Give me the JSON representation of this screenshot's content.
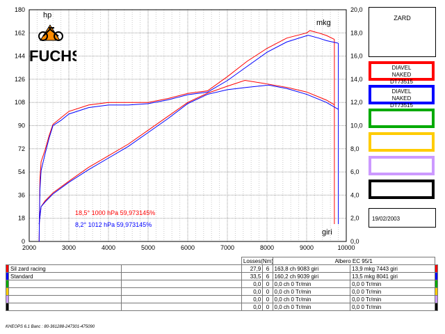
{
  "chart_data": {
    "type": "line",
    "left_unit": "hp",
    "right_unit": "mkg",
    "x_unit": "giri",
    "xlim": [
      2000,
      10000
    ],
    "x_ticks": [
      2000,
      3000,
      4000,
      5000,
      6000,
      7000,
      8000,
      9000,
      10000
    ],
    "ylim_left": [
      0,
      180
    ],
    "y_ticks_left": [
      0,
      18,
      36,
      54,
      72,
      90,
      108,
      126,
      144,
      162,
      180
    ],
    "ylim_right": [
      0,
      20
    ],
    "y_ticks_right": [
      "0,0",
      "2,0",
      "4,0",
      "6,0",
      "8,0",
      "10,0",
      "12,0",
      "14,0",
      "16,0",
      "18,0",
      "20,0"
    ],
    "grid": true,
    "series": [
      {
        "name": "Sil zard racing",
        "color": "#ff0000",
        "power_hp": [
          [
            2250,
            0
          ],
          [
            2270,
            48
          ],
          [
            2300,
            62
          ],
          [
            2400,
            71
          ],
          [
            2500,
            82
          ],
          [
            2600,
            91
          ],
          [
            2800,
            96
          ],
          [
            3000,
            101
          ],
          [
            3500,
            106
          ],
          [
            4000,
            108
          ],
          [
            4500,
            108
          ],
          [
            5000,
            108
          ],
          [
            5500,
            111
          ],
          [
            6000,
            115
          ],
          [
            6500,
            117
          ],
          [
            7000,
            128
          ],
          [
            7500,
            140
          ],
          [
            8000,
            150
          ],
          [
            8500,
            158
          ],
          [
            9000,
            162
          ],
          [
            9083,
            163.8
          ],
          [
            9300,
            162
          ],
          [
            9500,
            160
          ],
          [
            9700,
            157
          ]
        ],
        "torque_mkg": [
          [
            2250,
            1.5
          ],
          [
            2300,
            3
          ],
          [
            2400,
            3.5
          ],
          [
            2600,
            4.2
          ],
          [
            3000,
            5.2
          ],
          [
            3500,
            6.4
          ],
          [
            4000,
            7.4
          ],
          [
            4500,
            8.4
          ],
          [
            5000,
            9.6
          ],
          [
            5500,
            10.8
          ],
          [
            6000,
            12
          ],
          [
            6500,
            12.8
          ],
          [
            7000,
            13.4
          ],
          [
            7443,
            13.9
          ],
          [
            8000,
            13.6
          ],
          [
            8500,
            13.3
          ],
          [
            9000,
            12.9
          ],
          [
            9500,
            12.2
          ],
          [
            9700,
            11.8
          ]
        ]
      },
      {
        "name": "Standard",
        "color": "#0000ff",
        "power_hp": [
          [
            2250,
            0
          ],
          [
            2270,
            40
          ],
          [
            2300,
            55
          ],
          [
            2400,
            68
          ],
          [
            2500,
            80
          ],
          [
            2600,
            90
          ],
          [
            2800,
            94
          ],
          [
            3000,
            99
          ],
          [
            3500,
            104
          ],
          [
            4000,
            106
          ],
          [
            4500,
            106
          ],
          [
            5000,
            107
          ],
          [
            5500,
            110
          ],
          [
            6000,
            114
          ],
          [
            6500,
            116
          ],
          [
            7000,
            125
          ],
          [
            7500,
            136
          ],
          [
            8000,
            147
          ],
          [
            8500,
            155
          ],
          [
            9039,
            160.2
          ],
          [
            9300,
            158
          ],
          [
            9500,
            156
          ],
          [
            9800,
            154
          ]
        ],
        "torque_mkg": [
          [
            2250,
            1.5
          ],
          [
            2300,
            3
          ],
          [
            2400,
            3.4
          ],
          [
            2600,
            4.1
          ],
          [
            3000,
            5.1
          ],
          [
            3500,
            6.2
          ],
          [
            4000,
            7.2
          ],
          [
            4500,
            8.2
          ],
          [
            5000,
            9.4
          ],
          [
            5500,
            10.6
          ],
          [
            6000,
            11.9
          ],
          [
            6500,
            12.7
          ],
          [
            7000,
            13.1
          ],
          [
            7500,
            13.3
          ],
          [
            8041,
            13.5
          ],
          [
            8500,
            13.2
          ],
          [
            9000,
            12.7
          ],
          [
            9500,
            12.0
          ],
          [
            9800,
            11.4
          ]
        ]
      }
    ],
    "conditions": [
      {
        "text": "18,5° 1000 hPa  59,973145%",
        "color": "#ff0000"
      },
      {
        "text": "8,2° 1012 hPa  59,973145%",
        "color": "#0000ff"
      }
    ]
  },
  "side": {
    "name": "ZARD",
    "slots": [
      {
        "color": "#ff0000",
        "label": "DIAVEL\nNAKED\nDT73515"
      },
      {
        "color": "#0000ff",
        "label": "DIAVEL\nNAKED\nDT73515"
      },
      {
        "color": "#00aa00",
        "label": ""
      },
      {
        "color": "#ffcc00",
        "label": ""
      },
      {
        "color": "#cc99ff",
        "label": ""
      },
      {
        "color": "#000000",
        "label": ""
      }
    ],
    "date": "19/02/2003"
  },
  "logo": "FUCHS",
  "table": {
    "header_losses": "Losses(Nm)",
    "header_brake": "Albero EC 95/1",
    "rows": [
      {
        "color": "#ff0000",
        "name": "Sil zard racing",
        "v1": "27,9",
        "v2": "6",
        "power": "163,8 ch 9083 giri",
        "torque": "13,9 mkg 7443 giri"
      },
      {
        "color": "#0000ff",
        "name": "Standard",
        "v1": "33,5",
        "v2": "6",
        "power": "160,2 ch 9039 giri",
        "torque": "13,5 mkg 8041 giri"
      },
      {
        "color": "#00aa00",
        "name": "",
        "v1": "0,0",
        "v2": "0",
        "power": "0,0 ch 0 Tr/min",
        "torque": "0,0  0 Tr/min"
      },
      {
        "color": "#ffcc00",
        "name": "",
        "v1": "0,0",
        "v2": "0",
        "power": "0,0 ch 0 Tr/min",
        "torque": "0,0  0 Tr/min"
      },
      {
        "color": "#cc99ff",
        "name": "",
        "v1": "0,0",
        "v2": "0",
        "power": "0,0 ch 0 Tr/min",
        "torque": "0,0  0 Tr/min"
      },
      {
        "color": "#000000",
        "name": "",
        "v1": "0,0",
        "v2": "0",
        "power": "0,0 ch 0 Tr/min",
        "torque": "0,0  0 Tr/min"
      }
    ]
  },
  "footer": "KHEOPS 6.1  Banc : 80-361288-247301-475090"
}
